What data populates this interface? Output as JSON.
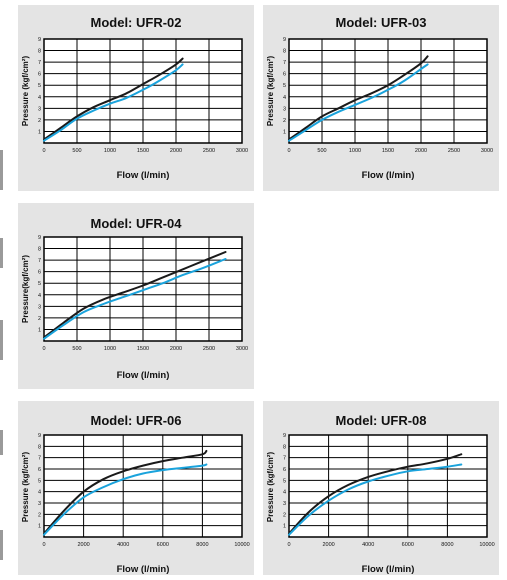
{
  "colors": {
    "panel_bg": "#e4e4e4",
    "plot_bg": "#ffffff",
    "grid": "#000000",
    "series_black": "#1a1a1a",
    "series_blue": "#1aa3dc"
  },
  "chart_data": [
    {
      "type": "line",
      "title": "Model: UFR-02",
      "xlabel": "Flow (l/min)",
      "ylabel": "Pressure (kgf/cm²)",
      "xlim": [
        0,
        3000
      ],
      "ylim": [
        0,
        9
      ],
      "xticks": [
        0,
        500,
        1000,
        1500,
        2000,
        2500,
        3000
      ],
      "yticks": [
        1,
        2,
        3,
        4,
        5,
        6,
        7,
        8,
        9
      ],
      "grid": true,
      "series": [
        {
          "color": "#1a1a1a",
          "x": [
            0,
            250,
            500,
            750,
            1000,
            1250,
            1500,
            1750,
            2000,
            2100
          ],
          "y": [
            0.3,
            1.3,
            2.3,
            3.1,
            3.7,
            4.3,
            5.1,
            5.9,
            6.8,
            7.3
          ]
        },
        {
          "color": "#1aa3dc",
          "x": [
            0,
            250,
            500,
            750,
            1000,
            1250,
            1500,
            1750,
            2000,
            2100
          ],
          "y": [
            0.2,
            1.1,
            2.1,
            2.8,
            3.4,
            3.9,
            4.6,
            5.4,
            6.3,
            6.8
          ]
        }
      ]
    },
    {
      "type": "line",
      "title": "Model: UFR-03",
      "xlabel": "Flow (l/min)",
      "ylabel": "Pressure (kgf/cm²)",
      "xlim": [
        0,
        3000
      ],
      "ylim": [
        0,
        9
      ],
      "xticks": [
        0,
        500,
        1000,
        1500,
        2000,
        2500,
        3000
      ],
      "yticks": [
        1,
        2,
        3,
        4,
        5,
        6,
        7,
        8,
        9
      ],
      "grid": true,
      "series": [
        {
          "color": "#1a1a1a",
          "x": [
            0,
            250,
            500,
            750,
            1000,
            1250,
            1500,
            1750,
            2000,
            2100
          ],
          "y": [
            0.3,
            1.3,
            2.3,
            3.0,
            3.7,
            4.3,
            5.0,
            5.9,
            6.9,
            7.5
          ]
        },
        {
          "color": "#1aa3dc",
          "x": [
            0,
            250,
            500,
            750,
            1000,
            1250,
            1500,
            1750,
            2000,
            2100
          ],
          "y": [
            0.2,
            1.1,
            2.0,
            2.7,
            3.3,
            3.9,
            4.6,
            5.4,
            6.4,
            6.8
          ]
        }
      ]
    },
    {
      "type": "line",
      "title": "Model: UFR-04",
      "xlabel": "Flow (l/min)",
      "ylabel": "Pressure(kgf/cm²)",
      "xlim": [
        0,
        3000
      ],
      "ylim": [
        0,
        9
      ],
      "xticks": [
        0,
        500,
        1000,
        1500,
        2000,
        2500,
        3000
      ],
      "yticks": [
        1,
        2,
        3,
        4,
        5,
        6,
        7,
        8,
        9
      ],
      "grid": true,
      "series": [
        {
          "color": "#1a1a1a",
          "x": [
            0,
            300,
            600,
            900,
            1200,
            1500,
            1800,
            2100,
            2400,
            2750
          ],
          "y": [
            0.3,
            1.6,
            2.8,
            3.6,
            4.2,
            4.8,
            5.5,
            6.2,
            6.9,
            7.7
          ]
        },
        {
          "color": "#1aa3dc",
          "x": [
            0,
            300,
            600,
            900,
            1200,
            1500,
            1800,
            2100,
            2400,
            2750
          ],
          "y": [
            0.2,
            1.4,
            2.5,
            3.2,
            3.8,
            4.4,
            5.0,
            5.7,
            6.3,
            7.1
          ]
        }
      ]
    },
    {
      "type": "line",
      "title": "Model: UFR-06",
      "xlabel": "Flow (l/min)",
      "ylabel": "Pressure (kgf/cm²)",
      "xlim": [
        0,
        10000
      ],
      "ylim": [
        0,
        9
      ],
      "xticks": [
        0,
        2000,
        4000,
        6000,
        8000,
        10000
      ],
      "yticks": [
        1,
        2,
        3,
        4,
        5,
        6,
        7,
        8,
        9
      ],
      "grid": true,
      "series": [
        {
          "color": "#1a1a1a",
          "x": [
            0,
            1000,
            2000,
            3000,
            4000,
            5000,
            6000,
            7000,
            8000,
            8200
          ],
          "y": [
            0.3,
            2.3,
            4.0,
            5.1,
            5.8,
            6.3,
            6.7,
            7.0,
            7.3,
            7.6
          ]
        },
        {
          "color": "#1aa3dc",
          "x": [
            0,
            1000,
            2000,
            3000,
            4000,
            5000,
            6000,
            7000,
            8000,
            8200
          ],
          "y": [
            0.2,
            2.0,
            3.5,
            4.4,
            5.1,
            5.6,
            5.9,
            6.1,
            6.3,
            6.4
          ]
        }
      ]
    },
    {
      "type": "line",
      "title": "Model: UFR-08",
      "xlabel": "Flow (l/min)",
      "ylabel": "Pressure (kgf/cm²)",
      "xlim": [
        0,
        10000
      ],
      "ylim": [
        0,
        9
      ],
      "xticks": [
        0,
        2000,
        4000,
        6000,
        8000,
        10000
      ],
      "yticks": [
        1,
        2,
        3,
        4,
        5,
        6,
        7,
        8,
        9
      ],
      "grid": true,
      "series": [
        {
          "color": "#1a1a1a",
          "x": [
            0,
            1000,
            2000,
            3000,
            4000,
            5000,
            6000,
            7000,
            8000,
            8700
          ],
          "y": [
            0.3,
            2.2,
            3.6,
            4.6,
            5.3,
            5.8,
            6.2,
            6.5,
            6.9,
            7.3
          ]
        },
        {
          "color": "#1aa3dc",
          "x": [
            0,
            1000,
            2000,
            3000,
            4000,
            5000,
            6000,
            7000,
            8000,
            8700
          ],
          "y": [
            0.2,
            1.9,
            3.2,
            4.2,
            4.9,
            5.4,
            5.8,
            6.0,
            6.2,
            6.4
          ]
        }
      ]
    }
  ]
}
